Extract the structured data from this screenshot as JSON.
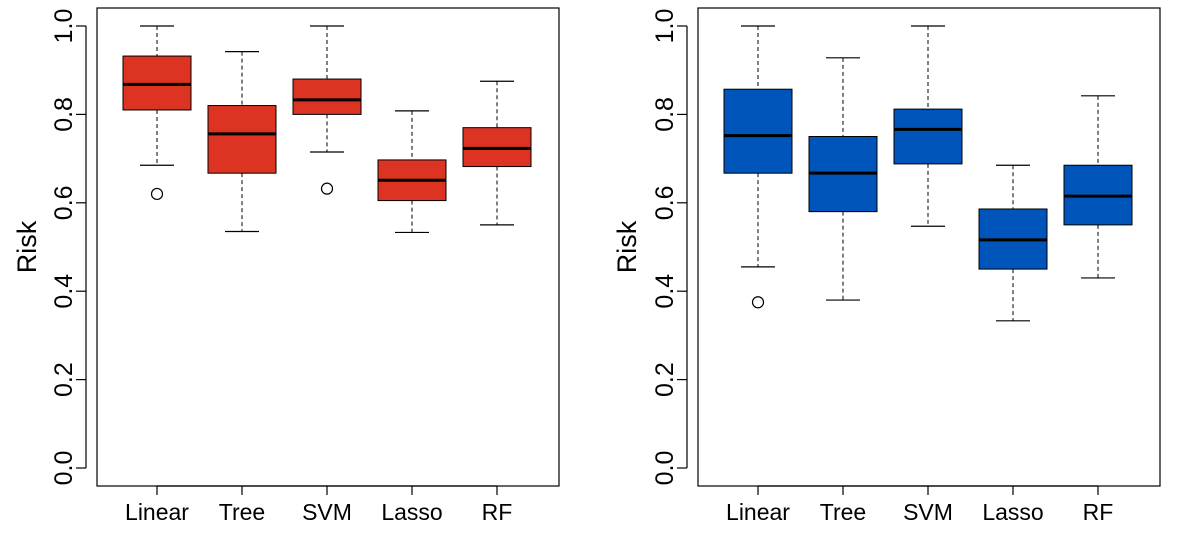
{
  "chart_data": [
    {
      "type": "boxplot",
      "title": "",
      "xlabel": "",
      "ylabel": "Risk",
      "ylim": [
        0.0,
        1.0
      ],
      "yticks": [
        "0.0",
        "0.2",
        "0.4",
        "0.6",
        "0.8",
        "1.0"
      ],
      "categories": [
        "Linear",
        "Tree",
        "SVM",
        "Lasso",
        "RF"
      ],
      "color": "#dd3322",
      "boxes": [
        {
          "name": "Linear",
          "min": 0.685,
          "q1": 0.81,
          "median": 0.868,
          "q3": 0.932,
          "max": 1.0,
          "outliers": [
            0.62
          ]
        },
        {
          "name": "Tree",
          "min": 0.535,
          "q1": 0.667,
          "median": 0.756,
          "q3": 0.82,
          "max": 0.942,
          "outliers": []
        },
        {
          "name": "SVM",
          "min": 0.715,
          "q1": 0.8,
          "median": 0.833,
          "q3": 0.88,
          "max": 1.0,
          "outliers": [
            0.632
          ]
        },
        {
          "name": "Lasso",
          "min": 0.533,
          "q1": 0.605,
          "median": 0.651,
          "q3": 0.697,
          "max": 0.808,
          "outliers": []
        },
        {
          "name": "RF",
          "min": 0.55,
          "q1": 0.682,
          "median": 0.723,
          "q3": 0.77,
          "max": 0.875,
          "outliers": []
        }
      ]
    },
    {
      "type": "boxplot",
      "title": "",
      "xlabel": "",
      "ylabel": "Risk",
      "ylim": [
        0.0,
        1.0
      ],
      "yticks": [
        "0.0",
        "0.2",
        "0.4",
        "0.6",
        "0.8",
        "1.0"
      ],
      "categories": [
        "Linear",
        "Tree",
        "SVM",
        "Lasso",
        "RF"
      ],
      "color": "#0055bb",
      "boxes": [
        {
          "name": "Linear",
          "min": 0.455,
          "q1": 0.667,
          "median": 0.752,
          "q3": 0.857,
          "max": 1.0,
          "outliers": [
            0.375
          ]
        },
        {
          "name": "Tree",
          "min": 0.38,
          "q1": 0.58,
          "median": 0.667,
          "q3": 0.75,
          "max": 0.928,
          "outliers": []
        },
        {
          "name": "SVM",
          "min": 0.547,
          "q1": 0.688,
          "median": 0.766,
          "q3": 0.812,
          "max": 1.0,
          "outliers": []
        },
        {
          "name": "Lasso",
          "min": 0.333,
          "q1": 0.45,
          "median": 0.516,
          "q3": 0.586,
          "max": 0.685,
          "outliers": []
        },
        {
          "name": "RF",
          "min": 0.43,
          "q1": 0.55,
          "median": 0.615,
          "q3": 0.685,
          "max": 0.842,
          "outliers": []
        }
      ]
    }
  ]
}
